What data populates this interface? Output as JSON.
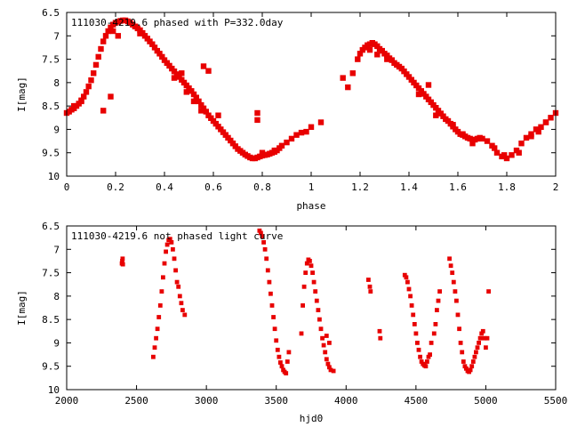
{
  "chart_data": [
    {
      "type": "scatter",
      "title": "111030-4219.6 phased with P=332.0day",
      "xlabel": "phase",
      "ylabel": "I[mag]",
      "xlim": [
        0,
        2
      ],
      "ylim": [
        10,
        6.5
      ],
      "y_inverted": true,
      "grid": false,
      "color": "#e80000",
      "x_ticks": [
        "0",
        "0.2",
        "0.4",
        "0.6",
        "0.8",
        "1",
        "1.2",
        "1.4",
        "1.6",
        "1.8",
        "2"
      ],
      "y_ticks": [
        "6.5",
        "7",
        "7.5",
        "8",
        "8.5",
        "9",
        "9.5",
        "10"
      ],
      "series": [
        {
          "x": [
            0.0,
            0.01,
            0.02,
            0.03,
            0.04,
            0.05,
            0.06,
            0.07,
            0.08,
            0.09,
            0.1,
            0.11,
            0.12,
            0.13,
            0.14,
            0.15,
            0.16,
            0.17,
            0.18,
            0.19,
            0.2,
            0.21,
            0.22,
            0.23,
            0.24,
            0.25,
            0.26,
            0.27,
            0.28,
            0.29,
            0.3,
            0.31,
            0.32,
            0.33,
            0.34,
            0.35,
            0.36,
            0.37,
            0.38,
            0.39,
            0.4,
            0.41,
            0.42,
            0.43,
            0.44,
            0.45,
            0.46,
            0.47,
            0.48,
            0.49,
            0.5,
            0.51,
            0.52,
            0.53,
            0.54,
            0.55,
            0.56,
            0.57,
            0.58,
            0.59,
            0.6,
            0.61,
            0.62,
            0.63,
            0.64,
            0.65,
            0.66,
            0.67,
            0.68,
            0.69,
            0.7,
            0.71,
            0.72,
            0.73,
            0.74,
            0.75,
            0.76,
            0.77,
            0.78,
            0.79,
            0.8,
            0.81,
            0.82,
            0.83,
            0.84,
            0.85,
            0.86,
            0.87,
            0.88,
            0.9,
            0.92,
            0.94,
            0.96,
            0.98,
            1.0,
            1.04,
            1.13,
            1.15,
            1.17,
            1.19,
            1.2,
            1.21,
            1.22,
            1.23,
            1.24,
            1.25,
            1.26,
            1.27,
            1.28,
            1.29,
            1.3,
            1.31,
            1.32,
            1.33,
            1.34,
            1.35,
            1.36,
            1.37,
            1.38,
            1.39,
            1.4,
            1.41,
            1.42,
            1.43,
            1.44,
            1.45,
            1.46,
            1.47,
            1.48,
            1.49,
            1.5,
            1.51,
            1.52,
            1.53,
            1.54,
            1.55,
            1.56,
            1.57,
            1.58,
            1.59,
            1.6,
            1.61,
            1.62,
            1.63,
            1.64,
            1.65,
            1.66,
            1.67,
            1.68,
            1.69,
            1.7,
            1.72,
            1.74,
            1.76,
            1.78,
            1.8,
            1.82,
            1.84,
            1.86,
            1.88,
            1.9,
            1.92,
            1.94,
            1.96,
            1.98,
            2.0,
            0.03,
            0.06,
            0.15,
            0.18,
            0.19,
            0.21,
            0.28,
            0.3,
            0.44,
            0.47,
            0.49,
            0.52,
            0.53,
            0.55,
            0.56,
            0.58,
            0.62,
            0.78,
            0.78,
            0.8,
            0.85,
            1.24,
            1.27,
            1.31,
            1.44,
            1.48,
            1.51,
            1.58,
            1.62,
            1.66,
            1.75,
            1.79,
            1.85,
            1.9,
            1.93,
            1.96
          ],
          "y": [
            8.65,
            8.62,
            8.58,
            8.55,
            8.5,
            8.45,
            8.38,
            8.3,
            8.2,
            8.08,
            7.95,
            7.8,
            7.62,
            7.45,
            7.28,
            7.12,
            7.0,
            6.9,
            6.82,
            6.76,
            6.72,
            6.7,
            6.68,
            6.67,
            6.67,
            6.69,
            6.72,
            6.76,
            6.8,
            6.84,
            6.88,
            6.94,
            7.0,
            7.06,
            7.12,
            7.18,
            7.25,
            7.32,
            7.38,
            7.45,
            7.52,
            7.58,
            7.64,
            7.7,
            7.76,
            7.82,
            7.88,
            7.94,
            8.0,
            8.06,
            8.12,
            8.18,
            8.25,
            8.32,
            8.4,
            8.48,
            8.55,
            8.62,
            8.7,
            8.76,
            8.82,
            8.88,
            8.94,
            9.0,
            9.06,
            9.12,
            9.18,
            9.24,
            9.3,
            9.36,
            9.42,
            9.46,
            9.5,
            9.54,
            9.57,
            9.6,
            9.62,
            9.62,
            9.6,
            9.58,
            9.56,
            9.55,
            9.54,
            9.52,
            9.5,
            9.48,
            9.45,
            9.4,
            9.35,
            9.28,
            9.2,
            9.12,
            9.07,
            9.05,
            8.95,
            8.85,
            7.9,
            8.1,
            7.8,
            7.5,
            7.38,
            7.3,
            7.25,
            7.2,
            7.18,
            7.15,
            7.18,
            7.22,
            7.28,
            7.32,
            7.38,
            7.42,
            7.48,
            7.52,
            7.58,
            7.62,
            7.66,
            7.7,
            7.76,
            7.82,
            7.88,
            7.94,
            8.0,
            8.06,
            8.12,
            8.18,
            8.24,
            8.3,
            8.36,
            8.42,
            8.48,
            8.54,
            8.6,
            8.66,
            8.72,
            8.78,
            8.82,
            8.88,
            8.94,
            9.0,
            9.05,
            9.1,
            9.12,
            9.15,
            9.18,
            9.2,
            9.22,
            9.22,
            9.2,
            9.18,
            9.2,
            9.25,
            9.35,
            9.5,
            9.58,
            9.62,
            9.55,
            9.45,
            9.3,
            9.18,
            9.1,
            9.0,
            8.95,
            8.85,
            8.75,
            8.65,
            8.5,
            8.4,
            8.6,
            8.3,
            6.9,
            7.0,
            6.8,
            6.95,
            7.9,
            7.8,
            8.2,
            8.4,
            8.35,
            8.6,
            7.65,
            7.75,
            8.7,
            8.65,
            8.8,
            9.5,
            9.45,
            7.3,
            7.4,
            7.5,
            8.25,
            8.05,
            8.7,
            8.9,
            9.1,
            9.3,
            9.4,
            9.55,
            9.5,
            9.15,
            9.05,
            8.85
          ]
        }
      ]
    },
    {
      "type": "scatter",
      "title": "111030-4219.6 not phased light curve",
      "xlabel": "hjd0",
      "ylabel": "I[mag]",
      "xlim": [
        2000,
        5500
      ],
      "ylim": [
        10,
        6.5
      ],
      "y_inverted": true,
      "grid": false,
      "color": "#e80000",
      "x_ticks": [
        "2000",
        "2500",
        "3000",
        "3500",
        "4000",
        "4500",
        "5000",
        "5500"
      ],
      "y_ticks": [
        "6.5",
        "7",
        "7.5",
        "8",
        "8.5",
        "9",
        "9.5",
        "10"
      ],
      "series": [
        {
          "x": [
            2395,
            2398,
            2400,
            2402,
            2620,
            2630,
            2640,
            2650,
            2660,
            2670,
            2680,
            2690,
            2700,
            2710,
            2720,
            2730,
            2740,
            2750,
            2760,
            2770,
            2780,
            2790,
            2800,
            2810,
            2820,
            2830,
            2845,
            3380,
            3390,
            3400,
            3410,
            3420,
            3430,
            3440,
            3450,
            3460,
            3470,
            3480,
            3490,
            3500,
            3510,
            3520,
            3530,
            3540,
            3550,
            3560,
            3570,
            3580,
            3590,
            3680,
            3690,
            3700,
            3710,
            3720,
            3730,
            3740,
            3750,
            3760,
            3770,
            3780,
            3790,
            3800,
            3810,
            3820,
            3830,
            3840,
            3850,
            3860,
            3870,
            3880,
            3890,
            3910,
            4160,
            4170,
            4175,
            4240,
            4245,
            4420,
            4430,
            4440,
            4450,
            4460,
            4470,
            4480,
            4490,
            4500,
            4510,
            4520,
            4530,
            4540,
            4550,
            4560,
            4570,
            4580,
            4590,
            4600,
            4610,
            4630,
            4640,
            4650,
            4660,
            4670,
            4740,
            4750,
            4760,
            4770,
            4780,
            4790,
            4800,
            4810,
            4820,
            4830,
            4840,
            4850,
            4860,
            4870,
            4880,
            4890,
            4900,
            4910,
            4920,
            4930,
            4940,
            4950,
            4960,
            4970,
            4980,
            4990,
            5000,
            5010,
            5020,
            3860,
            3880
          ],
          "y": [
            7.3,
            7.25,
            7.2,
            7.32,
            9.3,
            9.1,
            8.9,
            8.7,
            8.45,
            8.2,
            7.9,
            7.6,
            7.3,
            7.05,
            6.9,
            6.8,
            6.78,
            6.85,
            7.0,
            7.2,
            7.45,
            7.7,
            7.8,
            8.0,
            8.15,
            8.3,
            8.4,
            6.6,
            6.65,
            6.72,
            6.85,
            7.0,
            7.2,
            7.45,
            7.7,
            7.95,
            8.2,
            8.45,
            8.7,
            8.95,
            9.15,
            9.3,
            9.42,
            9.5,
            9.58,
            9.62,
            9.65,
            9.4,
            9.2,
            8.8,
            8.2,
            7.8,
            7.5,
            7.3,
            7.22,
            7.25,
            7.35,
            7.5,
            7.7,
            7.9,
            8.1,
            8.3,
            8.5,
            8.7,
            8.9,
            9.05,
            9.2,
            9.35,
            9.45,
            9.52,
            9.58,
            9.6,
            7.65,
            7.8,
            7.9,
            8.75,
            8.9,
            7.55,
            7.6,
            7.7,
            7.85,
            8.0,
            8.2,
            8.4,
            8.6,
            8.8,
            9.0,
            9.15,
            9.3,
            9.4,
            9.45,
            9.48,
            9.5,
            9.4,
            9.3,
            9.25,
            9.0,
            8.8,
            8.6,
            8.3,
            8.1,
            7.9,
            7.2,
            7.35,
            7.5,
            7.7,
            7.9,
            8.1,
            8.4,
            8.7,
            9.0,
            9.2,
            9.4,
            9.5,
            9.55,
            9.6,
            9.62,
            9.58,
            9.5,
            9.4,
            9.3,
            9.2,
            9.1,
            9.0,
            8.9,
            8.8,
            8.75,
            8.9,
            9.1,
            8.9,
            7.9,
            8.85,
            9.0
          ]
        }
      ]
    }
  ]
}
